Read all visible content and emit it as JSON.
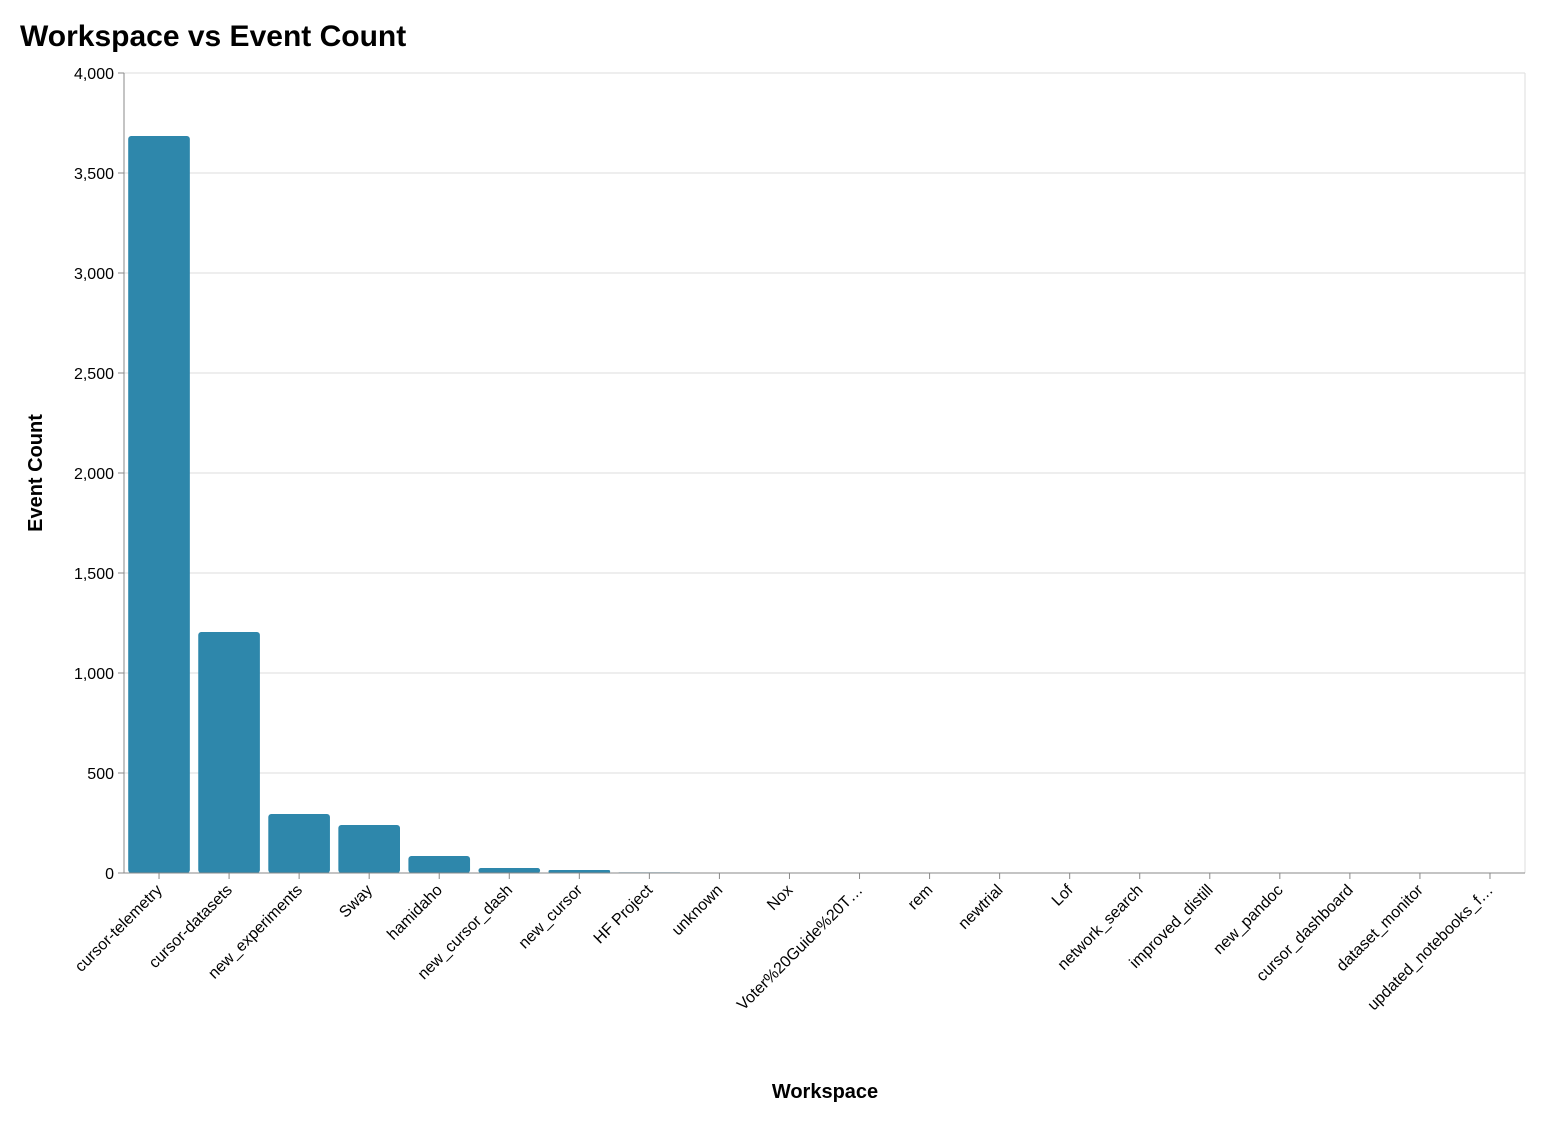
{
  "chart_data": {
    "type": "bar",
    "title": "Workspace vs Event Count",
    "x_label": "Workspace",
    "y_label": "Event Count",
    "categories": [
      "cursor-telemetry",
      "cursor-datasets",
      "new_experiments",
      "Sway",
      "hamidaho",
      "new_cursor_dash",
      "new_cursor",
      "HF Project",
      "unknown",
      "Nox",
      "Voter%20Guide%20T…",
      "rem",
      "newtrial",
      "Lof",
      "network_search",
      "improved_distill",
      "new_pandoc",
      "cursor_dashboard",
      "dataset_monitor",
      "updated_notebooks_f…"
    ],
    "values": [
      3685,
      1205,
      295,
      240,
      85,
      25,
      15,
      3,
      2,
      2,
      1,
      1,
      1,
      1,
      1,
      1,
      1,
      1,
      1,
      1
    ],
    "color": "#2e87ab",
    "ylim": [
      0,
      4000
    ],
    "yticks": [
      0,
      500,
      {
        "value": 1000,
        "label": "1,000"
      },
      {
        "value": 1500,
        "label": "1,500"
      },
      {
        "value": 2000,
        "label": "2,000"
      },
      {
        "value": 2500,
        "label": "2,500"
      },
      {
        "value": 3000,
        "label": "3,000"
      },
      {
        "value": 3500,
        "label": "3,500"
      },
      {
        "value": 4000,
        "label": "4,000"
      }
    ],
    "grid": true
  }
}
